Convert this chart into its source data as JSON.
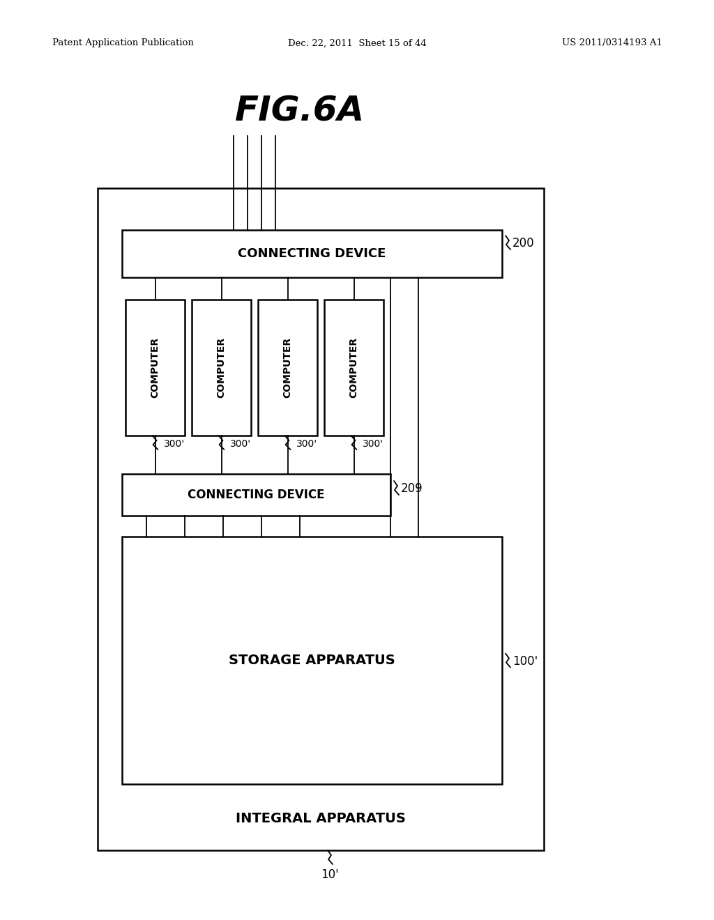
{
  "bg_color": "#ffffff",
  "title": "FIG.6A",
  "header_left": "Patent Application Publication",
  "header_mid": "Dec. 22, 2011  Sheet 15 of 44",
  "header_right": "US 2011/0314193 A1",
  "connecting_device_top_label": "CONNECTING DEVICE",
  "connecting_device_top_ref": "200",
  "computers": [
    "COMPUTER",
    "COMPUTER",
    "COMPUTER",
    "COMPUTER"
  ],
  "computer_refs": [
    "300'",
    "300'",
    "300'",
    "300'"
  ],
  "connecting_device_bot_label": "CONNECTING DEVICE",
  "connecting_device_bot_ref": "209",
  "storage_label": "STORAGE APPARATUS",
  "storage_ref": "100'",
  "integral_label": "INTEGRAL APPARATUS",
  "integral_ref": "10'"
}
